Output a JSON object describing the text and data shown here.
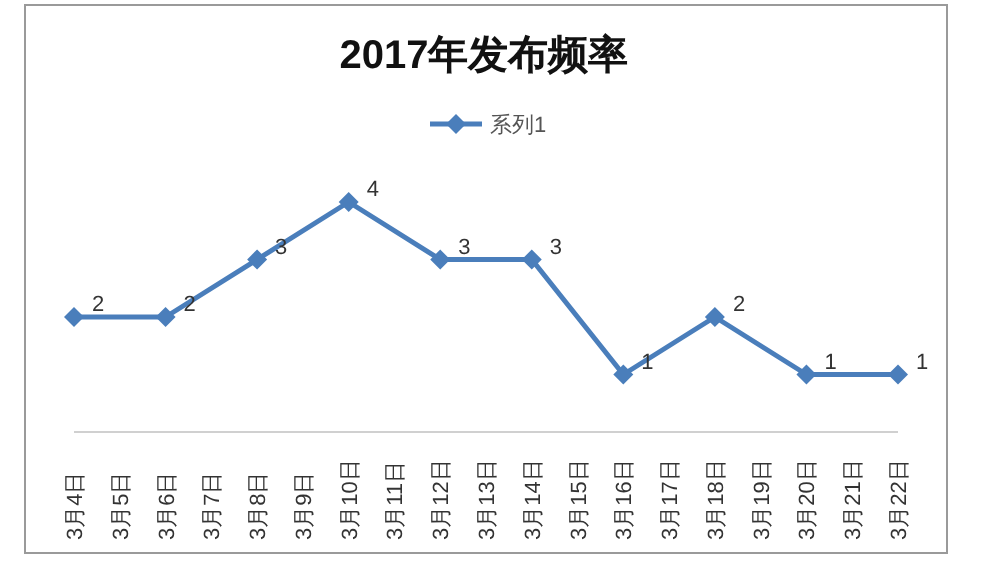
{
  "chart_data": {
    "type": "line",
    "title": "2017年发布频率",
    "x": [
      "--03-04",
      "--03-06",
      "--03-08",
      "--03-10",
      "--03-12",
      "--03-14",
      "--03-16",
      "--03-18",
      "--03-20",
      "--03-22"
    ],
    "xlim": [
      "--03-04",
      "--03-22"
    ],
    "xticks": [
      {
        "value": "--03-04",
        "label": "3月4日"
      },
      {
        "value": "--03-05",
        "label": "3月5日"
      },
      {
        "value": "--03-06",
        "label": "3月6日"
      },
      {
        "value": "--03-07",
        "label": "3月7日"
      },
      {
        "value": "--03-08",
        "label": "3月8日"
      },
      {
        "value": "--03-09",
        "label": "3月9日"
      },
      {
        "value": "--03-10",
        "label": "3月10日"
      },
      {
        "value": "--03-11",
        "label": "3月11日"
      },
      {
        "value": "--03-12",
        "label": "3月12日"
      },
      {
        "value": "--03-13",
        "label": "3月13日"
      },
      {
        "value": "--03-14",
        "label": "3月14日"
      },
      {
        "value": "--03-15",
        "label": "3月15日"
      },
      {
        "value": "--03-16",
        "label": "3月16日"
      },
      {
        "value": "--03-17",
        "label": "3月17日"
      },
      {
        "value": "--03-18",
        "label": "3月18日"
      },
      {
        "value": "--03-19",
        "label": "3月19日"
      },
      {
        "value": "--03-20",
        "label": "3月20日"
      },
      {
        "value": "--03-21",
        "label": "3月21日"
      },
      {
        "value": "--03-22",
        "label": "3月22日"
      }
    ],
    "series": [
      {
        "name": "系列1",
        "color": "#4a7ebb",
        "values": [
          2,
          2,
          3,
          4,
          3,
          3,
          1,
          2,
          1,
          1
        ]
      }
    ],
    "data_labels": true,
    "legend": "top",
    "marker": "diamond",
    "line_style": "solid",
    "tick_labels": "x"
  }
}
